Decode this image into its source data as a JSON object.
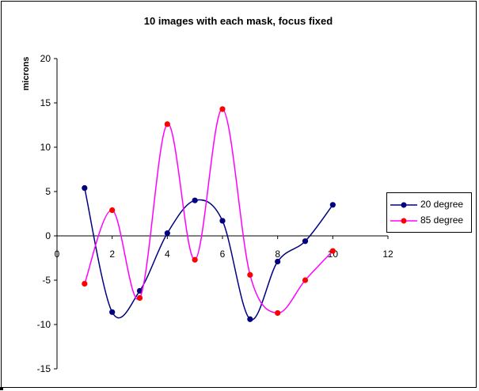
{
  "chart_data": {
    "type": "line",
    "title": "10 images with each mask, focus fixed",
    "xlabel": "",
    "ylabel": "microns",
    "xlim": [
      0,
      12
    ],
    "ylim": [
      -15,
      20
    ],
    "x_ticks": [
      0,
      2,
      4,
      6,
      8,
      10,
      12
    ],
    "y_ticks": [
      -15,
      -10,
      -5,
      0,
      5,
      10,
      15,
      20
    ],
    "grid": false,
    "smooth": true,
    "legend_position": "right",
    "series": [
      {
        "name": "20 degree",
        "color": "#000080",
        "x": [
          1,
          2,
          3,
          4,
          5,
          6,
          7,
          8,
          9,
          10
        ],
        "y": [
          5.4,
          -8.6,
          -6.2,
          0.3,
          4.0,
          1.7,
          -9.4,
          -2.9,
          -0.6,
          3.5
        ]
      },
      {
        "name": "85 degree",
        "color": "#ff00ff",
        "marker_color": "#ff0000",
        "x": [
          1,
          2,
          3,
          4,
          5,
          6,
          7,
          8,
          9,
          10
        ],
        "y": [
          -5.4,
          2.9,
          -7.0,
          12.6,
          -2.7,
          14.3,
          -4.4,
          -8.7,
          -5.0,
          -1.7
        ]
      }
    ]
  }
}
